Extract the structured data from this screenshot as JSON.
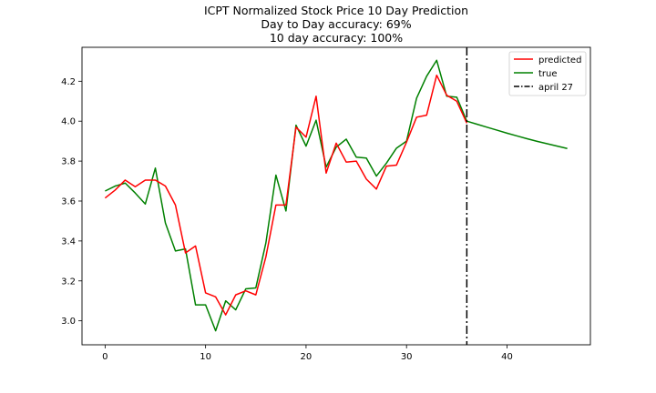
{
  "chart_data": {
    "type": "line",
    "title_lines": [
      "ICPT Normalized Stock Price 10 Day Prediction",
      "Day to Day accuracy: 69%",
      "10 day accuracy: 100%"
    ],
    "xlim": [
      -2.3,
      48.3
    ],
    "ylim": [
      2.88,
      4.37
    ],
    "x_ticks": [
      0,
      10,
      20,
      30,
      40
    ],
    "x_tick_labels": [
      "0",
      "10",
      "20",
      "30",
      "40"
    ],
    "y_ticks": [
      3.0,
      3.2,
      3.4,
      3.6,
      3.8,
      4.0,
      4.2
    ],
    "y_tick_labels": [
      "3.0",
      "3.2",
      "3.4",
      "3.6",
      "3.8",
      "4.0",
      "4.2"
    ],
    "series": [
      {
        "name": "predicted",
        "color": "#ff0000",
        "x": [
          0,
          1,
          2,
          3,
          4,
          5,
          6,
          7,
          8,
          9,
          10,
          11,
          12,
          13,
          14,
          15,
          16,
          17,
          18,
          19,
          20,
          21,
          22,
          23,
          24,
          25,
          26,
          27,
          28,
          29,
          30,
          31,
          32,
          33,
          34,
          35,
          36
        ],
        "values": [
          3.615,
          3.655,
          3.705,
          3.672,
          3.705,
          3.705,
          3.675,
          3.58,
          3.34,
          3.375,
          3.14,
          3.12,
          3.03,
          3.13,
          3.15,
          3.13,
          3.32,
          3.58,
          3.58,
          3.97,
          3.92,
          4.125,
          3.74,
          3.89,
          3.795,
          3.8,
          3.71,
          3.66,
          3.775,
          3.78,
          3.895,
          4.02,
          4.03,
          4.23,
          4.13,
          4.1,
          3.99
        ]
      },
      {
        "name": "true",
        "color": "#008000",
        "x": [
          0,
          1,
          2,
          3,
          4,
          5,
          6,
          7,
          8,
          9,
          10,
          11,
          12,
          13,
          14,
          15,
          16,
          17,
          18,
          19,
          20,
          21,
          22,
          23,
          24,
          25,
          26,
          27,
          28,
          29,
          30,
          31,
          32,
          33,
          34,
          35,
          36,
          37,
          38,
          39,
          40,
          41,
          42,
          43,
          44,
          45,
          46
        ],
        "values": [
          3.65,
          3.675,
          3.69,
          3.64,
          3.585,
          3.765,
          3.49,
          3.35,
          3.36,
          3.08,
          3.08,
          2.95,
          3.1,
          3.055,
          3.16,
          3.165,
          3.39,
          3.73,
          3.55,
          3.98,
          3.875,
          4.005,
          3.77,
          3.87,
          3.91,
          3.82,
          3.815,
          3.725,
          3.79,
          3.865,
          3.9,
          4.115,
          4.225,
          4.305,
          4.125,
          4.12,
          4.0,
          3.985,
          3.97,
          3.955,
          3.94,
          3.926,
          3.912,
          3.899,
          3.887,
          3.875,
          3.863
        ]
      }
    ],
    "vline": {
      "x": 36,
      "name": "april 27",
      "color": "#000000",
      "style": "dashdot"
    },
    "legend": {
      "placement": "top-right",
      "entries": [
        "predicted",
        "true",
        "april 27"
      ]
    },
    "grid": false
  }
}
